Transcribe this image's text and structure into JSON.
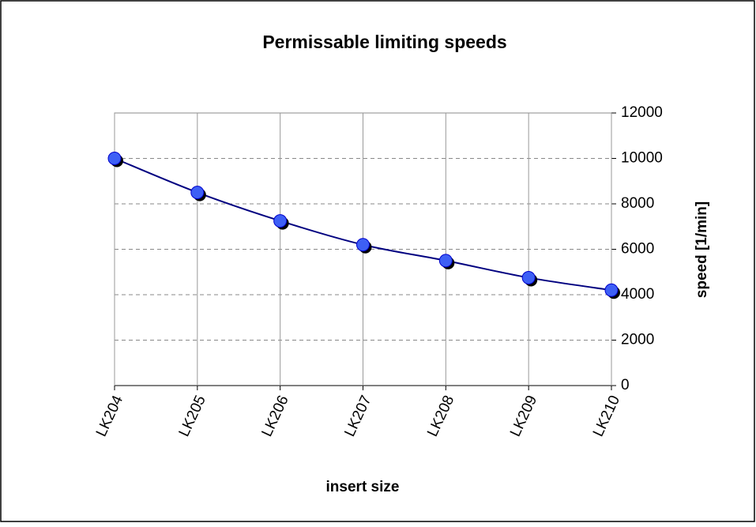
{
  "chart_data": {
    "type": "line",
    "title": "Permissable limiting speeds",
    "x_label": "insert size",
    "y_label": "speed  [1/min]",
    "categories": [
      "LK204",
      "LK205",
      "LK206",
      "LK207",
      "LK208",
      "LK209",
      "LK210"
    ],
    "values": [
      10000,
      8500,
      7250,
      6200,
      5500,
      4750,
      4200
    ],
    "color": "#0000cc",
    "line_color": "#000080",
    "ylim": [
      0,
      12000
    ],
    "yticks": [
      0,
      2000,
      4000,
      6000,
      8000,
      10000,
      12000
    ],
    "grid": true
  }
}
